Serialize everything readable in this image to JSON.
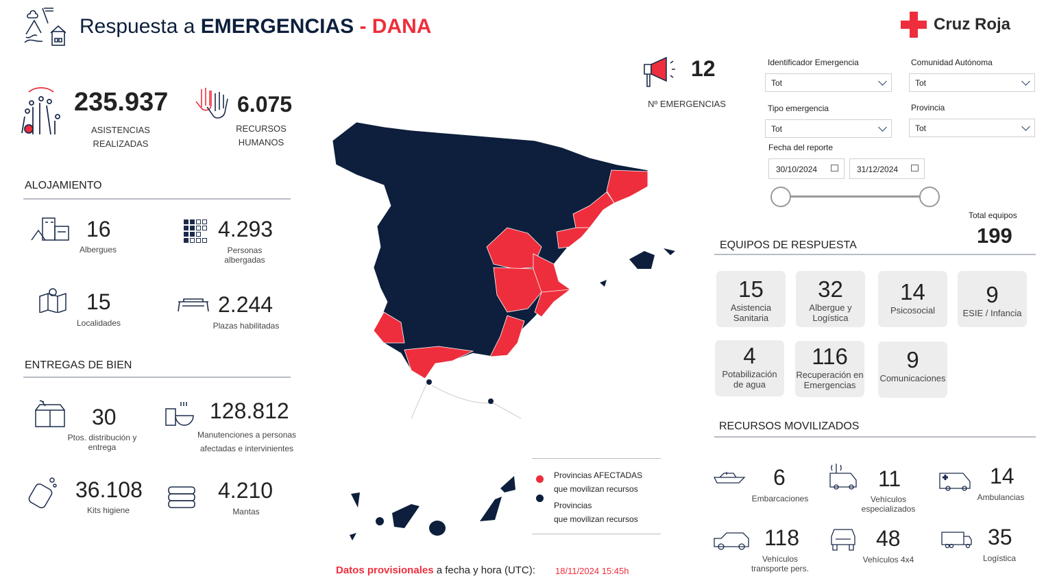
{
  "header": {
    "title_prefix": "Respuesta a ",
    "title_bold": "EMERGENCIAS",
    "title_suffix": " - DANA",
    "brand": "Cruz Roja"
  },
  "kpis": {
    "asistencias": {
      "value": "235.937",
      "l1": "ASISTENCIAS",
      "l2": "REALIZADAS"
    },
    "recursos": {
      "value": "6.075",
      "l1": "RECURSOS",
      "l2": "HUMANOS"
    },
    "emergencias": {
      "value": "12",
      "label": "Nº EMERGENCIAS"
    }
  },
  "alojamiento": {
    "title": "ALOJAMIENTO",
    "items": [
      {
        "value": "16",
        "label": "Albergues"
      },
      {
        "value": "4.293",
        "label": "Personas albergadas"
      },
      {
        "value": "15",
        "label": "Localidades"
      },
      {
        "value": "2.244",
        "label": "Plazas habilitadas"
      }
    ]
  },
  "entregas": {
    "title": "ENTREGAS DE BIEN",
    "items": [
      {
        "value": "30",
        "label": "Ptos. distribución y entrega"
      },
      {
        "value": "128.812",
        "label": "Manutenciones a personas afectadas e intervinientes"
      },
      {
        "value": "36.108",
        "label": "Kits higiene"
      },
      {
        "value": "4.210",
        "label": "Mantas"
      }
    ]
  },
  "filters": {
    "identificador": {
      "label": "Identificador Emergencia",
      "value": "Tot"
    },
    "comunidad": {
      "label": "Comunidad Autónoma",
      "value": "Tot"
    },
    "tipo": {
      "label": "Tipo emergencia",
      "value": "Tot"
    },
    "provincia": {
      "label": "Provincia",
      "value": "Tot"
    },
    "fecha": {
      "label": "Fecha del reporte",
      "from": "30/10/2024",
      "to": "31/12/2024",
      "slider_start": 0,
      "slider_end": 1
    }
  },
  "equipos": {
    "title": "EQUIPOS DE RESPUESTA",
    "total_label": "Total equipos",
    "total": "199",
    "items": [
      {
        "value": "15",
        "label": "Asistencia Sanitaria"
      },
      {
        "value": "32",
        "label": "Albergue y Logística"
      },
      {
        "value": "14",
        "label": "Psicosocial"
      },
      {
        "value": "9",
        "label": "ESIE / Infancia"
      },
      {
        "value": "4",
        "label": "Potabilización de agua"
      },
      {
        "value": "116",
        "label": "Recuperación en Emergencias"
      },
      {
        "value": "9",
        "label": "Comunicaciones"
      }
    ]
  },
  "recursos_movilizados": {
    "title": "RECURSOS MOVILIZADOS",
    "items": [
      {
        "value": "6",
        "label": "Embarcaciones"
      },
      {
        "value": "11",
        "label": "Vehículos especializados"
      },
      {
        "value": "14",
        "label": "Ambulancias"
      },
      {
        "value": "118",
        "label": "Vehículos transporte pers."
      },
      {
        "value": "48",
        "label": "Vehículos 4x4"
      },
      {
        "value": "35",
        "label": "Logística"
      }
    ]
  },
  "legend": {
    "affected_l1": "Provincias AFECTADAS",
    "affected_l2": "que movilizan recursos",
    "other_l1": "Provincias",
    "other_l2": "que movilizan recursos"
  },
  "footer": {
    "bold": "Datos provisionales",
    "text": " a fecha y hora (UTC):",
    "datetime": "18/11/2024 15:45h"
  },
  "colors": {
    "navy": "#0d1f3c",
    "red": "#ee2e3c"
  }
}
